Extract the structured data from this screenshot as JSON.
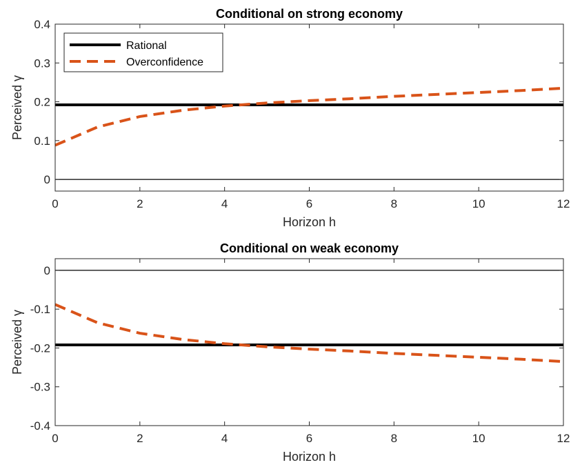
{
  "chart_data": [
    {
      "type": "line",
      "title": "Conditional on strong economy",
      "xlabel": "Horizon h",
      "ylabel": "Perceived γ",
      "xlim": [
        0,
        12
      ],
      "ylim": [
        -0.03,
        0.4
      ],
      "xticks": [
        "0",
        "2",
        "4",
        "6",
        "8",
        "10",
        "12"
      ],
      "yticks": [
        "0",
        "0.1",
        "0.2",
        "0.3",
        "0.4"
      ],
      "zero_line": true,
      "legend_location": "top-left",
      "series": [
        {
          "name": "Rational",
          "color": "#000000",
          "style": "solid",
          "x": [
            0,
            12
          ],
          "y": [
            0.192,
            0.192
          ]
        },
        {
          "name": "Overconfidence",
          "color": "#D95319",
          "style": "dashed",
          "x": [
            0,
            1,
            2,
            3,
            4,
            5,
            6,
            7,
            8,
            9,
            10,
            11,
            12
          ],
          "y": [
            0.088,
            0.135,
            0.162,
            0.178,
            0.189,
            0.197,
            0.203,
            0.208,
            0.214,
            0.219,
            0.224,
            0.229,
            0.235
          ]
        }
      ]
    },
    {
      "type": "line",
      "title": "Conditional on weak economy",
      "xlabel": "Horizon h",
      "ylabel": "Perceived γ",
      "xlim": [
        0,
        12
      ],
      "ylim": [
        -0.4,
        0.03
      ],
      "xticks": [
        "0",
        "2",
        "4",
        "6",
        "8",
        "10",
        "12"
      ],
      "yticks": [
        "-0.4",
        "-0.3",
        "-0.2",
        "-0.1",
        "0"
      ],
      "zero_line": true,
      "series": [
        {
          "name": "Rational",
          "color": "#000000",
          "style": "solid",
          "x": [
            0,
            12
          ],
          "y": [
            -0.192,
            -0.192
          ]
        },
        {
          "name": "Overconfidence",
          "color": "#D95319",
          "style": "dashed",
          "x": [
            0,
            1,
            2,
            3,
            4,
            5,
            6,
            7,
            8,
            9,
            10,
            11,
            12
          ],
          "y": [
            -0.088,
            -0.135,
            -0.162,
            -0.178,
            -0.189,
            -0.197,
            -0.203,
            -0.208,
            -0.214,
            -0.219,
            -0.224,
            -0.229,
            -0.235
          ]
        }
      ]
    }
  ]
}
